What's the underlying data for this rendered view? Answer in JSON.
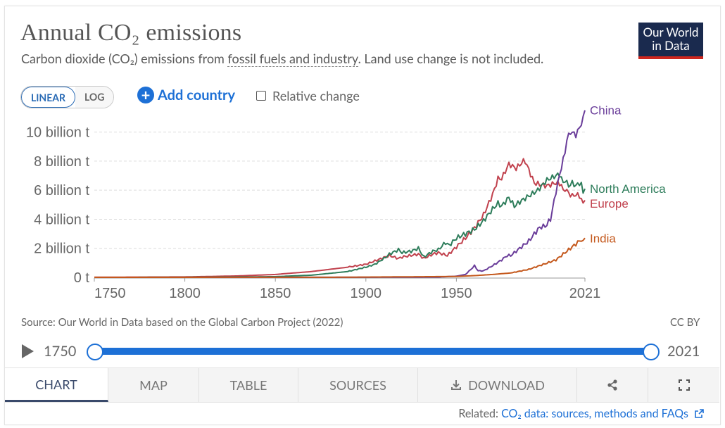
{
  "header": {
    "title": "Annual CO₂ emissions",
    "subtitle_pre": "Carbon dioxide (CO₂) emissions from ",
    "subtitle_link": "fossil fuels and industry",
    "subtitle_post": ". Land use change is not included.",
    "logo_line1": "Our World",
    "logo_line2": "in Data"
  },
  "controls": {
    "linear_label": "LINEAR",
    "log_label": "LOG",
    "add_country_label": "Add country",
    "relative_change_label": "Relative change"
  },
  "chart_data": {
    "type": "line",
    "title": "Annual CO₂ emissions",
    "xlabel": "",
    "ylabel": "",
    "xlim": [
      1750,
      2021
    ],
    "ylim": [
      0,
      11
    ],
    "x_ticks": [
      1750,
      1800,
      1850,
      1900,
      1950,
      2021
    ],
    "y_ticks": [
      {
        "value": 0,
        "label": "0 t"
      },
      {
        "value": 2,
        "label": "2 billion t"
      },
      {
        "value": 4,
        "label": "4 billion t"
      },
      {
        "value": 6,
        "label": "6 billion t"
      },
      {
        "value": 8,
        "label": "8 billion t"
      },
      {
        "value": 10,
        "label": "10 billion t"
      }
    ],
    "grid": true,
    "legend": "inline-right",
    "series": [
      {
        "name": "Europe",
        "color": "#c1424e",
        "points": [
          [
            1750,
            0.01
          ],
          [
            1800,
            0.03
          ],
          [
            1830,
            0.1
          ],
          [
            1850,
            0.2
          ],
          [
            1870,
            0.4
          ],
          [
            1890,
            0.7
          ],
          [
            1900,
            0.9
          ],
          [
            1913,
            1.5
          ],
          [
            1918,
            1.3
          ],
          [
            1920,
            1.4
          ],
          [
            1929,
            1.6
          ],
          [
            1932,
            1.3
          ],
          [
            1937,
            1.6
          ],
          [
            1940,
            1.7
          ],
          [
            1945,
            1.5
          ],
          [
            1950,
            2.1
          ],
          [
            1955,
            2.7
          ],
          [
            1960,
            3.4
          ],
          [
            1965,
            4.3
          ],
          [
            1970,
            5.7
          ],
          [
            1973,
            6.8
          ],
          [
            1975,
            6.8
          ],
          [
            1979,
            7.8
          ],
          [
            1983,
            7.5
          ],
          [
            1987,
            8.0
          ],
          [
            1988,
            8.0
          ],
          [
            1990,
            7.4
          ],
          [
            1993,
            6.5
          ],
          [
            1996,
            6.4
          ],
          [
            2000,
            6.3
          ],
          [
            2005,
            6.5
          ],
          [
            2008,
            6.4
          ],
          [
            2009,
            5.9
          ],
          [
            2010,
            6.1
          ],
          [
            2012,
            5.8
          ],
          [
            2014,
            5.6
          ],
          [
            2016,
            5.7
          ],
          [
            2018,
            5.6
          ],
          [
            2019,
            5.4
          ],
          [
            2020,
            5.0
          ],
          [
            2021,
            5.3
          ]
        ]
      },
      {
        "name": "North America",
        "color": "#2e7d5b",
        "points": [
          [
            1750,
            0
          ],
          [
            1800,
            0.005
          ],
          [
            1850,
            0.05
          ],
          [
            1870,
            0.15
          ],
          [
            1890,
            0.4
          ],
          [
            1900,
            0.7
          ],
          [
            1905,
            0.9
          ],
          [
            1910,
            1.3
          ],
          [
            1913,
            1.6
          ],
          [
            1918,
            1.9
          ],
          [
            1920,
            1.7
          ],
          [
            1925,
            1.8
          ],
          [
            1929,
            2.0
          ],
          [
            1932,
            1.4
          ],
          [
            1937,
            1.8
          ],
          [
            1940,
            1.9
          ],
          [
            1944,
            2.4
          ],
          [
            1946,
            2.2
          ],
          [
            1950,
            2.7
          ],
          [
            1955,
            3.0
          ],
          [
            1960,
            3.3
          ],
          [
            1965,
            3.9
          ],
          [
            1970,
            4.7
          ],
          [
            1973,
            5.1
          ],
          [
            1975,
            4.9
          ],
          [
            1979,
            5.5
          ],
          [
            1982,
            4.9
          ],
          [
            1985,
            5.2
          ],
          [
            1990,
            5.6
          ],
          [
            1995,
            6.0
          ],
          [
            2000,
            6.7
          ],
          [
            2005,
            7.0
          ],
          [
            2007,
            7.1
          ],
          [
            2009,
            6.5
          ],
          [
            2010,
            6.7
          ],
          [
            2012,
            6.3
          ],
          [
            2014,
            6.5
          ],
          [
            2016,
            6.3
          ],
          [
            2018,
            6.5
          ],
          [
            2019,
            6.4
          ],
          [
            2020,
            5.8
          ],
          [
            2021,
            6.1
          ]
        ]
      },
      {
        "name": "China",
        "color": "#6a3d9a",
        "points": [
          [
            1750,
            0
          ],
          [
            1900,
            0.005
          ],
          [
            1940,
            0.02
          ],
          [
            1950,
            0.08
          ],
          [
            1955,
            0.2
          ],
          [
            1958,
            0.55
          ],
          [
            1960,
            0.8
          ],
          [
            1962,
            0.45
          ],
          [
            1965,
            0.45
          ],
          [
            1970,
            0.8
          ],
          [
            1975,
            1.2
          ],
          [
            1978,
            1.5
          ],
          [
            1980,
            1.5
          ],
          [
            1985,
            2.0
          ],
          [
            1990,
            2.5
          ],
          [
            1995,
            3.3
          ],
          [
            1997,
            3.5
          ],
          [
            1999,
            3.5
          ],
          [
            2002,
            4.0
          ],
          [
            2005,
            5.9
          ],
          [
            2008,
            7.6
          ],
          [
            2010,
            8.6
          ],
          [
            2011,
            9.5
          ],
          [
            2013,
            10.0
          ],
          [
            2015,
            9.9
          ],
          [
            2016,
            9.8
          ],
          [
            2018,
            10.3
          ],
          [
            2019,
            10.6
          ],
          [
            2020,
            10.9
          ],
          [
            2021,
            11.5
          ]
        ]
      },
      {
        "name": "India",
        "color": "#c4581c",
        "points": [
          [
            1750,
            0
          ],
          [
            1880,
            0.005
          ],
          [
            1900,
            0.02
          ],
          [
            1950,
            0.06
          ],
          [
            1960,
            0.12
          ],
          [
            1970,
            0.2
          ],
          [
            1980,
            0.3
          ],
          [
            1990,
            0.55
          ],
          [
            2000,
            0.98
          ],
          [
            2005,
            1.2
          ],
          [
            2010,
            1.7
          ],
          [
            2015,
            2.2
          ],
          [
            2019,
            2.6
          ],
          [
            2020,
            2.4
          ],
          [
            2021,
            2.7
          ]
        ]
      }
    ]
  },
  "footer": {
    "source": "Source: Our World in Data based on the Global Carbon Project (2022)",
    "license": "CC BY",
    "timeline_start": "1750",
    "timeline_end": "2021"
  },
  "tabs": [
    {
      "label": "CHART"
    },
    {
      "label": "MAP"
    },
    {
      "label": "TABLE"
    },
    {
      "label": "SOURCES"
    },
    {
      "label": "DOWNLOAD"
    },
    {
      "label": ""
    },
    {
      "label": ""
    }
  ],
  "related": {
    "prefix": "Related: ",
    "link": "CO₂ data: sources, methods and FAQs"
  }
}
